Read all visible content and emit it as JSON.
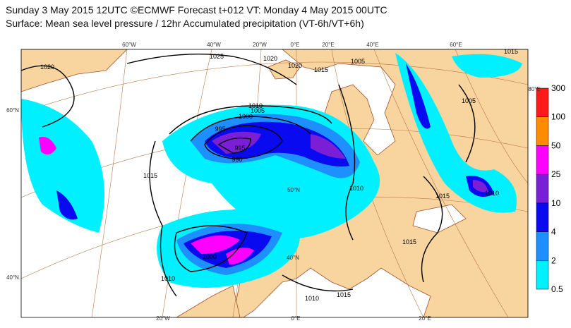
{
  "header": {
    "line1": "Sunday 3 May 2015 12UTC ©ECMWF Forecast t+012 VT: Monday 4 May 2015 00UTC",
    "line2": "Surface: Mean sea level pressure / 12hr Accumulated precipitation (VT-6h/VT+6h)"
  },
  "colorbar": {
    "levels": [
      0.5,
      2,
      4,
      10,
      25,
      50,
      100,
      300
    ],
    "colors": [
      "#00f0ff",
      "#1e8fff",
      "#0a0af0",
      "#7a1fd6",
      "#ff00ff",
      "#ff8c00",
      "#ff1a1a"
    ]
  },
  "map": {
    "graticule_labels": [
      "60°W",
      "40°W",
      "20°W",
      "0°E",
      "20°E",
      "40°E",
      "60°E",
      "60°N",
      "40°N",
      "20°W",
      "0°E",
      "20°E",
      "50°N",
      "40°N",
      "80°E"
    ],
    "isobar_labels": [
      "1025",
      "1020",
      "1020",
      "1010",
      "1005",
      "1000",
      "995",
      "995",
      "990",
      "1015",
      "1010",
      "1015",
      "1010",
      "1005",
      "1015",
      "1005",
      "1015",
      "1000",
      "1010",
      "1015",
      "1010",
      "1015",
      "1020"
    ]
  }
}
